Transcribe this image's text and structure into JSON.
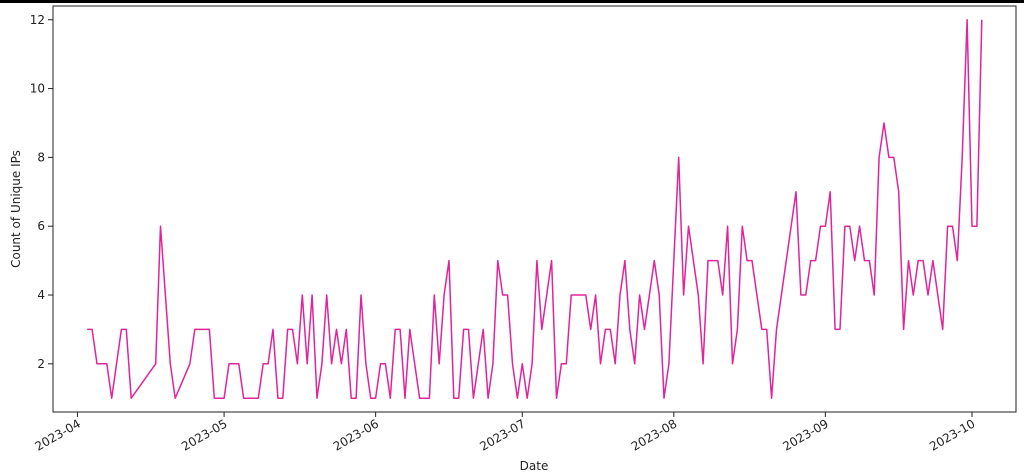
{
  "chart_data": {
    "type": "line",
    "xlabel": "Date",
    "ylabel": "Count of Unique IPs",
    "line_color": "#e0249a",
    "grid": false,
    "xlim": [
      "2023-03-27",
      "2023-10-10"
    ],
    "ylim": [
      0.6,
      12.4
    ],
    "x_tick_labels": [
      "2023-04",
      "2023-05",
      "2023-06",
      "2023-07",
      "2023-08",
      "2023-09",
      "2023-10"
    ],
    "x_tick_values": [
      "2023-04-01",
      "2023-05-01",
      "2023-06-01",
      "2023-07-01",
      "2023-08-01",
      "2023-09-01",
      "2023-10-01"
    ],
    "y_tick_labels": [
      "2",
      "4",
      "6",
      "8",
      "10",
      "12"
    ],
    "y_tick_values": [
      2,
      4,
      6,
      8,
      10,
      12
    ],
    "series": [
      {
        "points": [
          [
            "2023-04-03",
            3
          ],
          [
            "2023-04-04",
            3
          ],
          [
            "2023-04-05",
            2
          ],
          [
            "2023-04-07",
            2
          ],
          [
            "2023-04-08",
            1
          ],
          [
            "2023-04-10",
            3
          ],
          [
            "2023-04-11",
            3
          ],
          [
            "2023-04-12",
            1
          ],
          [
            "2023-04-17",
            2
          ],
          [
            "2023-04-18",
            6
          ],
          [
            "2023-04-20",
            2
          ],
          [
            "2023-04-21",
            1
          ],
          [
            "2023-04-24",
            2
          ],
          [
            "2023-04-25",
            3
          ],
          [
            "2023-04-28",
            3
          ],
          [
            "2023-04-29",
            1
          ],
          [
            "2023-05-01",
            1
          ],
          [
            "2023-05-02",
            2
          ],
          [
            "2023-05-04",
            2
          ],
          [
            "2023-05-05",
            1
          ],
          [
            "2023-05-08",
            1
          ],
          [
            "2023-05-09",
            2
          ],
          [
            "2023-05-10",
            2
          ],
          [
            "2023-05-11",
            3
          ],
          [
            "2023-05-12",
            1
          ],
          [
            "2023-05-13",
            1
          ],
          [
            "2023-05-14",
            3
          ],
          [
            "2023-05-15",
            3
          ],
          [
            "2023-05-16",
            2
          ],
          [
            "2023-05-17",
            4
          ],
          [
            "2023-05-18",
            2
          ],
          [
            "2023-05-19",
            4
          ],
          [
            "2023-05-20",
            1
          ],
          [
            "2023-05-21",
            2
          ],
          [
            "2023-05-22",
            4
          ],
          [
            "2023-05-23",
            2
          ],
          [
            "2023-05-24",
            3
          ],
          [
            "2023-05-25",
            2
          ],
          [
            "2023-05-26",
            3
          ],
          [
            "2023-05-27",
            1
          ],
          [
            "2023-05-28",
            1
          ],
          [
            "2023-05-29",
            4
          ],
          [
            "2023-05-30",
            2
          ],
          [
            "2023-05-31",
            1
          ],
          [
            "2023-06-01",
            1
          ],
          [
            "2023-06-02",
            2
          ],
          [
            "2023-06-03",
            2
          ],
          [
            "2023-06-04",
            1
          ],
          [
            "2023-06-05",
            3
          ],
          [
            "2023-06-06",
            3
          ],
          [
            "2023-06-07",
            1
          ],
          [
            "2023-06-08",
            3
          ],
          [
            "2023-06-09",
            2
          ],
          [
            "2023-06-10",
            1
          ],
          [
            "2023-06-12",
            1
          ],
          [
            "2023-06-13",
            4
          ],
          [
            "2023-06-14",
            2
          ],
          [
            "2023-06-15",
            4
          ],
          [
            "2023-06-16",
            5
          ],
          [
            "2023-06-17",
            1
          ],
          [
            "2023-06-18",
            1
          ],
          [
            "2023-06-19",
            3
          ],
          [
            "2023-06-20",
            3
          ],
          [
            "2023-06-21",
            1
          ],
          [
            "2023-06-22",
            2
          ],
          [
            "2023-06-23",
            3
          ],
          [
            "2023-06-24",
            1
          ],
          [
            "2023-06-25",
            2
          ],
          [
            "2023-06-26",
            5
          ],
          [
            "2023-06-27",
            4
          ],
          [
            "2023-06-28",
            4
          ],
          [
            "2023-06-29",
            2
          ],
          [
            "2023-06-30",
            1
          ],
          [
            "2023-07-01",
            2
          ],
          [
            "2023-07-02",
            1
          ],
          [
            "2023-07-03",
            2
          ],
          [
            "2023-07-04",
            5
          ],
          [
            "2023-07-05",
            3
          ],
          [
            "2023-07-06",
            4
          ],
          [
            "2023-07-07",
            5
          ],
          [
            "2023-07-08",
            1
          ],
          [
            "2023-07-09",
            2
          ],
          [
            "2023-07-10",
            2
          ],
          [
            "2023-07-11",
            4
          ],
          [
            "2023-07-12",
            4
          ],
          [
            "2023-07-14",
            4
          ],
          [
            "2023-07-15",
            3
          ],
          [
            "2023-07-16",
            4
          ],
          [
            "2023-07-17",
            2
          ],
          [
            "2023-07-18",
            3
          ],
          [
            "2023-07-19",
            3
          ],
          [
            "2023-07-20",
            2
          ],
          [
            "2023-07-21",
            4
          ],
          [
            "2023-07-22",
            5
          ],
          [
            "2023-07-23",
            3
          ],
          [
            "2023-07-24",
            2
          ],
          [
            "2023-07-25",
            4
          ],
          [
            "2023-07-26",
            3
          ],
          [
            "2023-07-27",
            4
          ],
          [
            "2023-07-28",
            5
          ],
          [
            "2023-07-29",
            4
          ],
          [
            "2023-07-30",
            1
          ],
          [
            "2023-07-31",
            2
          ],
          [
            "2023-08-01",
            5
          ],
          [
            "2023-08-02",
            8
          ],
          [
            "2023-08-03",
            4
          ],
          [
            "2023-08-04",
            6
          ],
          [
            "2023-08-05",
            5
          ],
          [
            "2023-08-06",
            4
          ],
          [
            "2023-08-07",
            2
          ],
          [
            "2023-08-08",
            5
          ],
          [
            "2023-08-10",
            5
          ],
          [
            "2023-08-11",
            4
          ],
          [
            "2023-08-12",
            6
          ],
          [
            "2023-08-13",
            2
          ],
          [
            "2023-08-14",
            3
          ],
          [
            "2023-08-15",
            6
          ],
          [
            "2023-08-16",
            5
          ],
          [
            "2023-08-17",
            5
          ],
          [
            "2023-08-19",
            3
          ],
          [
            "2023-08-20",
            3
          ],
          [
            "2023-08-21",
            1
          ],
          [
            "2023-08-22",
            3
          ],
          [
            "2023-08-26",
            7
          ],
          [
            "2023-08-27",
            4
          ],
          [
            "2023-08-28",
            4
          ],
          [
            "2023-08-29",
            5
          ],
          [
            "2023-08-30",
            5
          ],
          [
            "2023-08-31",
            6
          ],
          [
            "2023-09-01",
            6
          ],
          [
            "2023-09-02",
            7
          ],
          [
            "2023-09-03",
            3
          ],
          [
            "2023-09-04",
            3
          ],
          [
            "2023-09-05",
            6
          ],
          [
            "2023-09-06",
            6
          ],
          [
            "2023-09-07",
            5
          ],
          [
            "2023-09-08",
            6
          ],
          [
            "2023-09-09",
            5
          ],
          [
            "2023-09-10",
            5
          ],
          [
            "2023-09-11",
            4
          ],
          [
            "2023-09-12",
            8
          ],
          [
            "2023-09-13",
            9
          ],
          [
            "2023-09-14",
            8
          ],
          [
            "2023-09-15",
            8
          ],
          [
            "2023-09-16",
            7
          ],
          [
            "2023-09-17",
            3
          ],
          [
            "2023-09-18",
            5
          ],
          [
            "2023-09-19",
            4
          ],
          [
            "2023-09-20",
            5
          ],
          [
            "2023-09-21",
            5
          ],
          [
            "2023-09-22",
            4
          ],
          [
            "2023-09-23",
            5
          ],
          [
            "2023-09-25",
            3
          ],
          [
            "2023-09-26",
            6
          ],
          [
            "2023-09-27",
            6
          ],
          [
            "2023-09-28",
            5
          ],
          [
            "2023-09-29",
            8
          ],
          [
            "2023-09-30",
            12
          ],
          [
            "2023-10-01",
            6
          ],
          [
            "2023-10-02",
            6
          ],
          [
            "2023-10-03",
            12
          ]
        ]
      }
    ]
  }
}
